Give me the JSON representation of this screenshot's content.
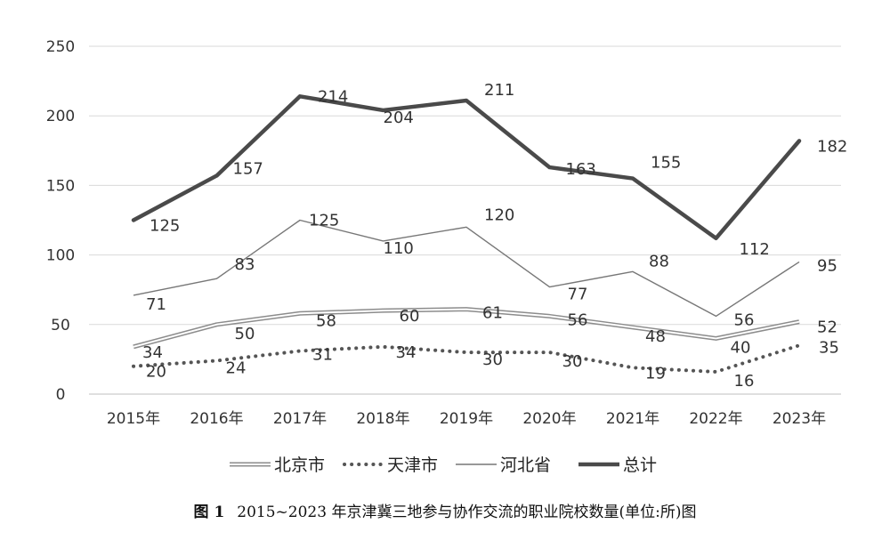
{
  "chart_data": {
    "type": "line",
    "title": "",
    "xlabel": "",
    "ylabel": "",
    "categories": [
      "2015年",
      "2016年",
      "2017年",
      "2018年",
      "2019年",
      "2020年",
      "2021年",
      "2022年",
      "2023年"
    ],
    "ylim": [
      0,
      250
    ],
    "yticks": [
      0,
      50,
      100,
      150,
      200,
      250
    ],
    "grid": true,
    "legend_position": "bottom",
    "series": [
      {
        "name": "北京市",
        "values": [
          34,
          50,
          58,
          60,
          61,
          56,
          48,
          40,
          52
        ],
        "style": "double-line",
        "color": "#999999"
      },
      {
        "name": "天津市",
        "values": [
          20,
          24,
          31,
          34,
          30,
          30,
          19,
          16,
          35
        ],
        "style": "dotted",
        "color": "#555555"
      },
      {
        "name": "河北省",
        "values": [
          71,
          83,
          125,
          110,
          120,
          77,
          88,
          56,
          95
        ],
        "style": "thin",
        "color": "#777777"
      },
      {
        "name": "总计",
        "values": [
          125,
          157,
          214,
          204,
          211,
          163,
          155,
          112,
          182
        ],
        "style": "thick",
        "color": "#4a4a4a"
      }
    ]
  },
  "caption": {
    "prefix": "图 1",
    "text": "2015~2023 年京津冀三地参与协作交流的职业院校数量(单位:所)图"
  }
}
